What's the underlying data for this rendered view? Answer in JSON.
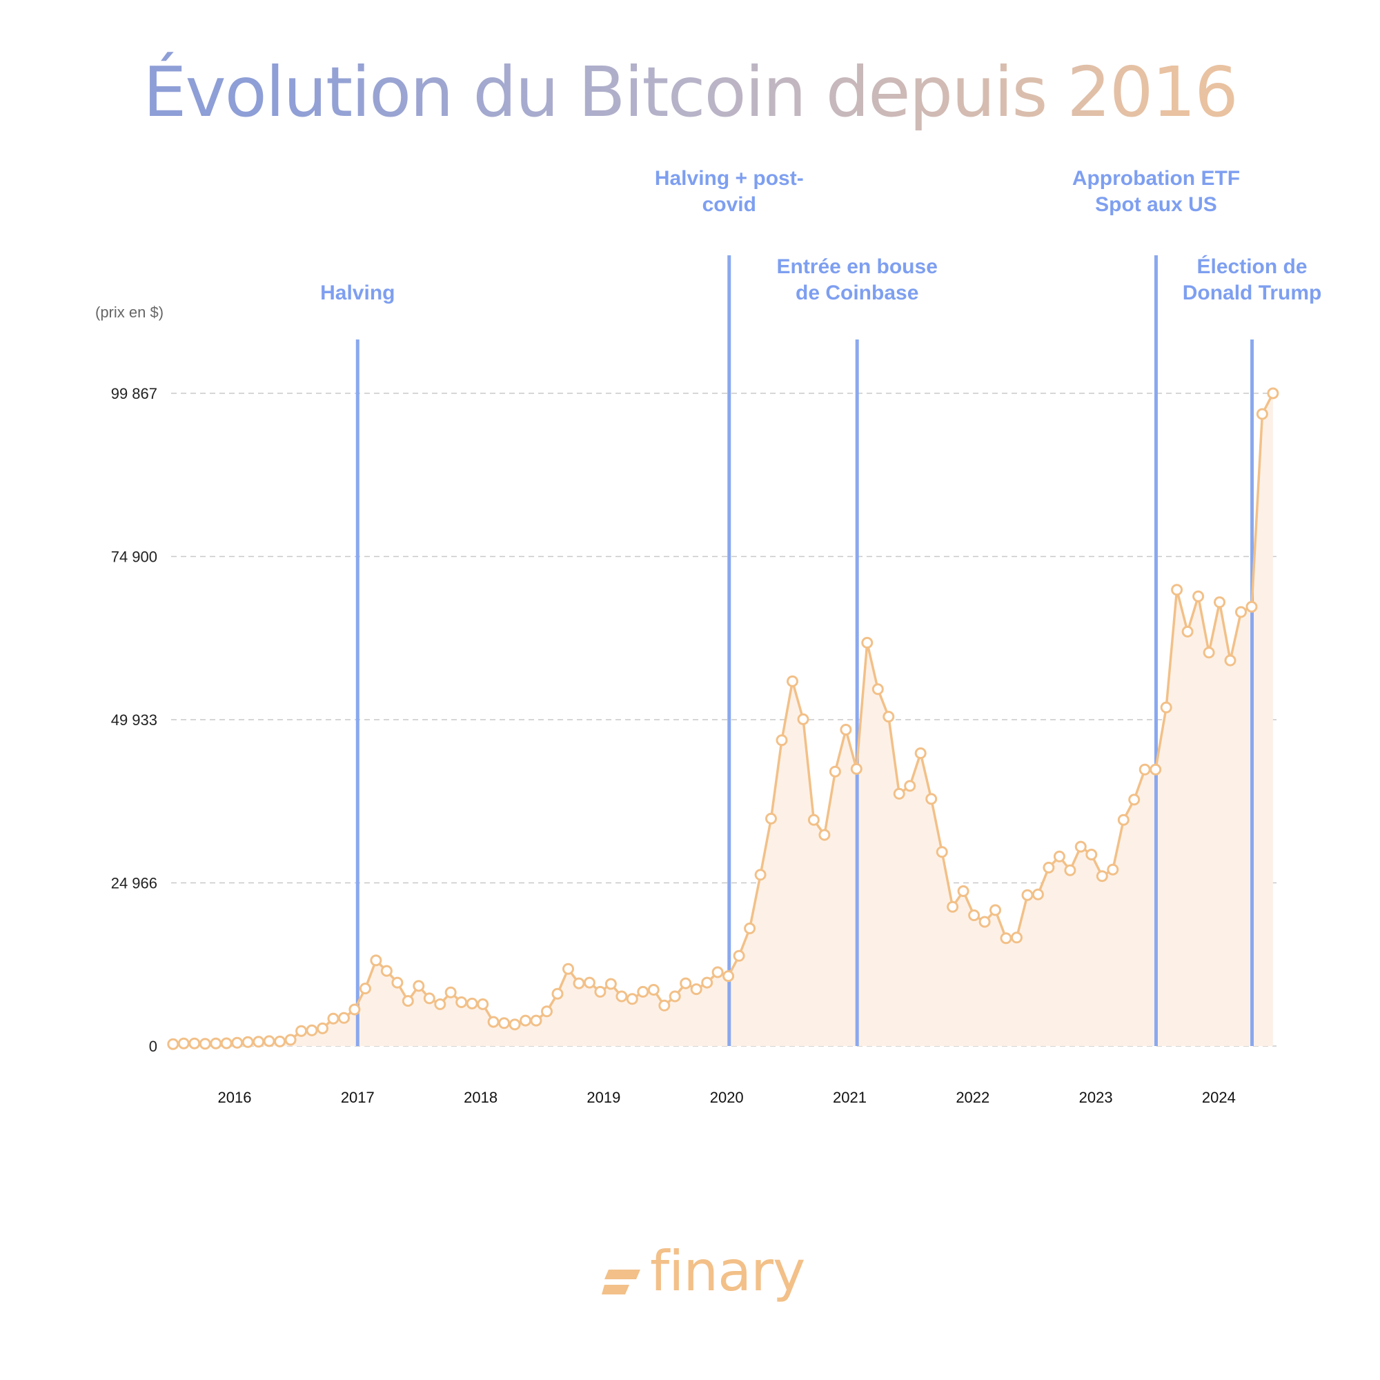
{
  "title": "Évolution du Bitcoin depuis 2016",
  "brand": {
    "name": "finary",
    "icon": "finary-logo-icon"
  },
  "colors": {
    "line": "#f2c088",
    "area": "#fdf1e7",
    "event": "#8aa8ee",
    "event_text": "#7e9ff0",
    "grid": "#c8c8c8"
  },
  "chart_data": {
    "type": "area",
    "ylabel": "(prix en $)",
    "ylim": [
      0,
      99867
    ],
    "yticks": [
      0,
      24966,
      49933,
      74900,
      99867
    ],
    "ytick_labels": [
      "0",
      "24 966",
      "49 933",
      "74 900",
      "99 867"
    ],
    "xlim": [
      2015.5,
      2024.5
    ],
    "xticks": [
      2016,
      2017,
      2018,
      2019,
      2020,
      2021,
      2022,
      2023,
      2024
    ],
    "xtick_labels": [
      "2016",
      "2017",
      "2018",
      "2019",
      "2020",
      "2021",
      "2022",
      "2023",
      "2024"
    ],
    "grid": "horizontal dashed",
    "x_start": 2015.5,
    "x_step": 0.0868,
    "values": [
      300,
      400,
      400,
      350,
      400,
      420,
      500,
      600,
      650,
      750,
      700,
      950,
      2300,
      2400,
      2700,
      4200,
      4300,
      5600,
      8800,
      13100,
      11500,
      9700,
      6900,
      9200,
      7300,
      6400,
      8200,
      6700,
      6500,
      6400,
      3700,
      3500,
      3300,
      3900,
      3900,
      5300,
      8000,
      11800,
      9600,
      9700,
      8300,
      9500,
      7600,
      7200,
      8300,
      8600,
      6200,
      7600,
      9600,
      8700,
      9700,
      11300,
      10700,
      13800,
      18000,
      26200,
      34800,
      46800,
      55800,
      50000,
      34600,
      32300,
      42000,
      48400,
      42400,
      61700,
      54600,
      50400,
      38600,
      39800,
      44800,
      37800,
      29700,
      21300,
      23700,
      20000,
      19000,
      20800,
      16500,
      16600,
      23100,
      23200,
      27300,
      29000,
      26900,
      30500,
      29300,
      26000,
      27000,
      34600,
      37700,
      42300,
      42300,
      51800,
      69800,
      63400,
      68800,
      60200,
      67900,
      59000,
      66400,
      67200,
      96700,
      99867
    ],
    "events": [
      {
        "label": "Halving",
        "lines": [
          "Halving"
        ],
        "x": 2017.0
      },
      {
        "label": "Halving + post-covid",
        "lines": [
          "Halving + post-",
          "covid"
        ],
        "x": 2020.02
      },
      {
        "label": "Entrée en bouse de Coinbase",
        "lines": [
          "Entrée en bouse",
          "de Coinbase"
        ],
        "x": 2021.06
      },
      {
        "label": "Approbation ETF Spot aux US",
        "lines": [
          "Approbation ETF",
          "Spot aux US"
        ],
        "x": 2023.49
      },
      {
        "label": "Élection de Donald Trump",
        "lines": [
          "Élection de",
          "Donald Trump"
        ],
        "x": 2024.27
      }
    ]
  }
}
